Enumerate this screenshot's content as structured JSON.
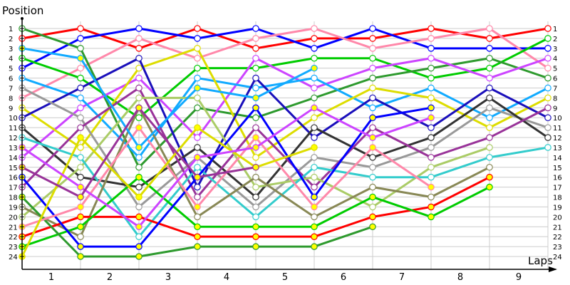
{
  "chart_data": {
    "type": "line",
    "title": "",
    "ylabel": "Position",
    "xlabel": "Laps",
    "x": [
      0,
      1,
      2,
      3,
      4,
      5,
      6,
      7,
      8,
      9
    ],
    "x_tick_labels": [
      "1",
      "2",
      "3",
      "4",
      "5",
      "6",
      "7",
      "8",
      "9"
    ],
    "y_tick_labels": [
      "1",
      "2",
      "3",
      "4",
      "5",
      "6",
      "7",
      "8",
      "9",
      "10",
      "11",
      "12",
      "13",
      "14",
      "15",
      "16",
      "17",
      "18",
      "19",
      "20",
      "21",
      "22",
      "23",
      "24"
    ],
    "ylim": [
      1,
      24
    ],
    "y_inverted": true,
    "grid": true,
    "series": [
      {
        "name": "red",
        "color": "#ff0000",
        "fill": "#ffffff",
        "values": [
          2,
          1,
          3,
          1,
          3,
          2,
          2,
          1,
          2,
          1
        ]
      },
      {
        "name": "blue",
        "color": "#0000ff",
        "fill": "#ffffff",
        "values": [
          5,
          2,
          1,
          2,
          1,
          3,
          1,
          3,
          3,
          3
        ]
      },
      {
        "name": "pink",
        "color": "#ff88aa",
        "fill": "#ffffff",
        "values": [
          8,
          5,
          2,
          4,
          2,
          1,
          3,
          2,
          1,
          5
        ]
      },
      {
        "name": "green",
        "color": "#00cc00",
        "fill": "#ffffff",
        "values": [
          4,
          6,
          10,
          5,
          5,
          4,
          4,
          6,
          5,
          2
        ]
      },
      {
        "name": "dark-green",
        "color": "#2e9a2e",
        "fill": "#ffffff",
        "values": [
          1,
          3,
          15,
          9,
          10,
          8,
          6,
          5,
          4,
          6
        ]
      },
      {
        "name": "violet",
        "color": "#cc44ff",
        "fill": "#ffffff",
        "values": [
          14,
          9,
          6,
          12,
          4,
          7,
          5,
          4,
          6,
          4
        ]
      },
      {
        "name": "sky-blue",
        "color": "#11aaff",
        "fill": "#ffffff",
        "values": [
          6,
          8,
          14,
          6,
          7,
          6,
          9,
          7,
          10,
          7
        ]
      },
      {
        "name": "yellow",
        "color": "#dddd00",
        "fill": "#ffffff",
        "values": [
          9,
          13,
          5,
          3,
          14,
          10,
          7,
          8,
          11,
          8
        ]
      },
      {
        "name": "navy",
        "color": "#1a0fbb",
        "fill": "#ffffff",
        "values": [
          10,
          7,
          4,
          17,
          6,
          12,
          8,
          11,
          7,
          10
        ]
      },
      {
        "name": "gray",
        "color": "#999999",
        "fill": "#ffffff",
        "values": [
          7,
          10,
          19,
          14,
          19,
          14,
          15,
          13,
          9,
          11
        ]
      },
      {
        "name": "black",
        "color": "#333333",
        "fill": "#ffffff",
        "values": [
          11,
          16,
          17,
          13,
          18,
          11,
          14,
          12,
          8,
          12
        ]
      },
      {
        "name": "purple",
        "color": "#993399",
        "fill": "#ffffff",
        "values": [
          17,
          11,
          7,
          18,
          11,
          17,
          11,
          14,
          12,
          9
        ]
      },
      {
        "name": "light-olive",
        "color": "#aacc66",
        "fill": "#ffffff",
        "values": [
          20,
          15,
          8,
          8,
          17,
          16,
          19,
          15,
          13
        ]
      },
      {
        "name": "cyan",
        "color": "#33cccc",
        "fill": "#ffffff",
        "values": [
          12,
          14,
          22,
          15,
          20,
          15,
          16,
          16,
          14,
          13
        ]
      },
      {
        "name": "olive",
        "color": "#888855",
        "fill": "#ffffff",
        "values": [
          19,
          22,
          9,
          20,
          16,
          20,
          17,
          18,
          15
        ]
      },
      {
        "name": "red-2",
        "color": "#ff0000",
        "fill": "#ffff00",
        "values": [
          22,
          20,
          20,
          22,
          22,
          22,
          20,
          19,
          16
        ]
      },
      {
        "name": "green-2",
        "color": "#00cc00",
        "fill": "#ffff00",
        "values": [
          23,
          21,
          16,
          21,
          21,
          21,
          18,
          20,
          17
        ]
      },
      {
        "name": "dark-green-2",
        "color": "#2e9a2e",
        "fill": "#ffff00",
        "values": [
          18,
          24,
          24,
          23,
          23,
          23,
          21
        ]
      },
      {
        "name": "blue-2",
        "color": "#0000ff",
        "fill": "#ffff00",
        "values": [
          16,
          23,
          23,
          16,
          9,
          18,
          10,
          9
        ]
      },
      {
        "name": "pink-2",
        "color": "#ff88aa",
        "fill": "#ffff00",
        "values": [
          21,
          19,
          11,
          19,
          12,
          19,
          13,
          17
        ]
      },
      {
        "name": "yellow-2",
        "color": "#dddd00",
        "fill": "#ffff00",
        "values": [
          24,
          12,
          18,
          11,
          15,
          13
        ]
      },
      {
        "name": "violet-2",
        "color": "#cc44ff",
        "fill": "#ffff00",
        "values": [
          13,
          17,
          21,
          14,
          13,
          9,
          12,
          10
        ]
      },
      {
        "name": "sky-blue-2",
        "color": "#11aaff",
        "fill": "#ffff00",
        "values": [
          3,
          4,
          13,
          7,
          8,
          5
        ]
      },
      {
        "name": "purple-2",
        "color": "#993399",
        "fill": "#ffff00",
        "values": [
          15,
          18,
          9,
          16,
          15
        ]
      }
    ]
  },
  "axes": {
    "y_title": "Position",
    "x_title": "Laps"
  }
}
